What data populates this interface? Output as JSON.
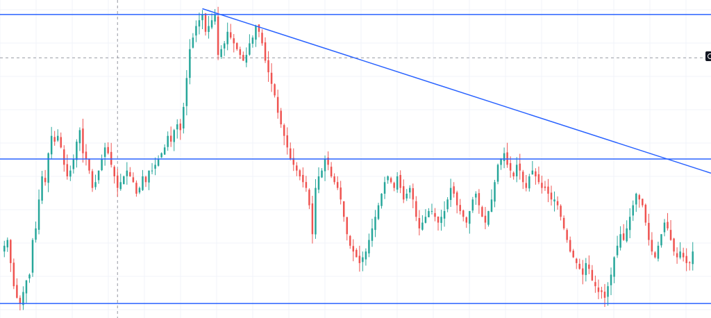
{
  "chart_data": {
    "type": "candlestick",
    "grid": true,
    "colors": {
      "up": "#26a69a",
      "down": "#ef5350",
      "level_line": "#2962ff",
      "trend_line": "#2962ff",
      "grid": "#f0f3fa",
      "crosshair": "#9598a1"
    },
    "ylim": [
      -5,
      105
    ],
    "levels": [
      100,
      50,
      0
    ],
    "trendline": {
      "start": [
        63,
        102
      ],
      "end": [
        245,
        38
      ]
    },
    "crosshair": {
      "x": 36,
      "y": 85
    },
    "closes": [
      20,
      22,
      14,
      6,
      2,
      0,
      4,
      8,
      10,
      22,
      26,
      36,
      44,
      42,
      52,
      58,
      56,
      58,
      54,
      48,
      44,
      46,
      50,
      56,
      60,
      52,
      50,
      46,
      40,
      42,
      46,
      50,
      54,
      52,
      48,
      44,
      40,
      42,
      44,
      46,
      44,
      42,
      38,
      40,
      44,
      42,
      46,
      46,
      48,
      50,
      52,
      54,
      58,
      56,
      60,
      62,
      60,
      68,
      78,
      88,
      92,
      96,
      98,
      100,
      94,
      96,
      98,
      100,
      86,
      88,
      90,
      94,
      92,
      90,
      88,
      86,
      84,
      86,
      90,
      92,
      96,
      94,
      90,
      84,
      80,
      76,
      72,
      66,
      62,
      58,
      54,
      50,
      48,
      46,
      44,
      42,
      40,
      34,
      24,
      40,
      44,
      46,
      50,
      48,
      44,
      42,
      40,
      36,
      30,
      24,
      20,
      18,
      16,
      14,
      16,
      18,
      22,
      26,
      30,
      34,
      38,
      42,
      44,
      42,
      40,
      44,
      40,
      36,
      38,
      40,
      36,
      30,
      26,
      28,
      30,
      32,
      32,
      30,
      28,
      30,
      32,
      36,
      40,
      38,
      34,
      32,
      30,
      28,
      32,
      36,
      38,
      34,
      30,
      28,
      32,
      36,
      42,
      48,
      50,
      52,
      48,
      46,
      44,
      48,
      46,
      42,
      40,
      44,
      46,
      44,
      42,
      40,
      40,
      38,
      36,
      36,
      34,
      30,
      26,
      22,
      18,
      16,
      14,
      12,
      10,
      14,
      12,
      8,
      6,
      4,
      4,
      2,
      6,
      10,
      16,
      20,
      24,
      22,
      26,
      30,
      34,
      38,
      36,
      34,
      28,
      22,
      18,
      16,
      20,
      24,
      28,
      26,
      22,
      18,
      16,
      18,
      16,
      14,
      14,
      18
    ]
  }
}
